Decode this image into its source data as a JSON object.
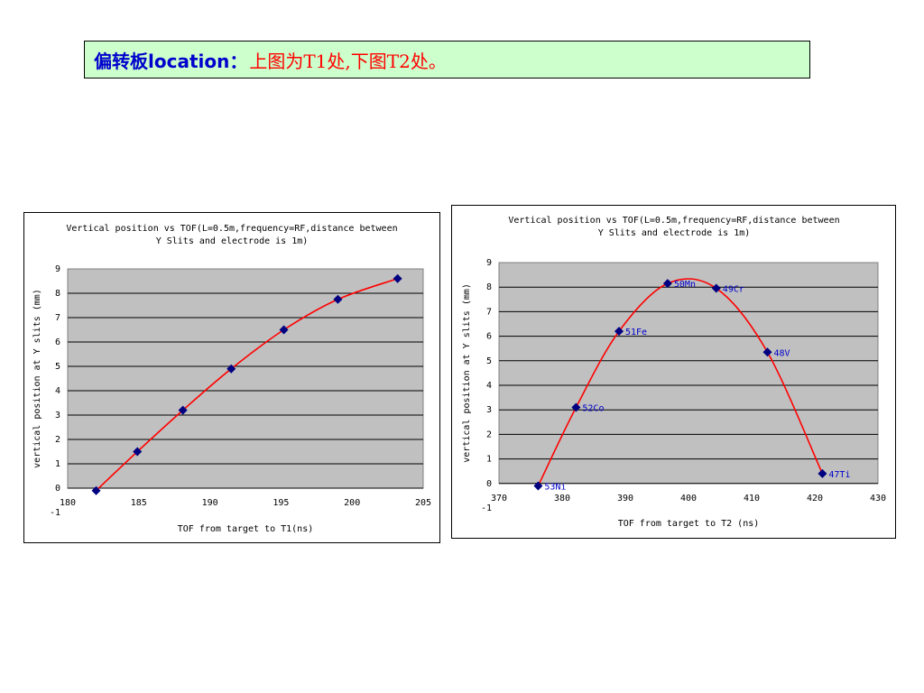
{
  "header": {
    "prefix": "偏转板location：",
    "text": "上图为T1处,下图T2处。",
    "colors": {
      "prefix": "#0000cc",
      "text": "#ff0000",
      "background": "#ccffcc"
    }
  },
  "chart_data": [
    {
      "type": "scatter",
      "title_lines": [
        "Vertical position vs TOF(L=0.5m,frequency=RF,distance between",
        "Y Slits and electrode is 1m)"
      ],
      "xlabel": "TOF from target to T1(ns)",
      "ylabel": "vertical position at Y slits (mm)",
      "xlim": [
        180,
        205
      ],
      "ylim": [
        -1,
        9
      ],
      "xticks": [
        180,
        185,
        190,
        195,
        200,
        205
      ],
      "yticks": [
        -1,
        0,
        1,
        2,
        3,
        4,
        5,
        6,
        7,
        8,
        9
      ],
      "grid": true,
      "plot_background": "#c0c0c0",
      "marker_color": "#000080",
      "line_color": "#ff0000",
      "points": [
        {
          "x": 182.0,
          "y": -0.1
        },
        {
          "x": 184.9,
          "y": 1.5
        },
        {
          "x": 188.1,
          "y": 3.2
        },
        {
          "x": 191.5,
          "y": 4.9
        },
        {
          "x": 195.2,
          "y": 6.5
        },
        {
          "x": 199.0,
          "y": 7.75
        },
        {
          "x": 203.2,
          "y": 8.6
        }
      ]
    },
    {
      "type": "scatter",
      "title_lines": [
        "Vertical position vs TOF(L=0.5m,frequency=RF,distance between",
        "Y Slits and electrode is 1m)"
      ],
      "xlabel": "TOF from target to T2 (ns)",
      "ylabel": "vertical position at Y slits (mm)",
      "xlim": [
        370,
        430
      ],
      "ylim": [
        -1,
        9
      ],
      "xticks": [
        370,
        380,
        390,
        400,
        410,
        420,
        430
      ],
      "yticks": [
        -1,
        0,
        1,
        2,
        3,
        4,
        5,
        6,
        7,
        8,
        9
      ],
      "grid": true,
      "plot_background": "#c0c0c0",
      "marker_color": "#000080",
      "line_color": "#ff0000",
      "label_color": "#0000cc",
      "points": [
        {
          "x": 376.2,
          "y": -0.1,
          "label": "53Ni"
        },
        {
          "x": 382.2,
          "y": 3.1,
          "label": "52Co"
        },
        {
          "x": 389.0,
          "y": 6.2,
          "label": "51Fe"
        },
        {
          "x": 396.7,
          "y": 8.15,
          "label": "50Mn"
        },
        {
          "x": 404.4,
          "y": 7.95,
          "label": "49Cr"
        },
        {
          "x": 412.5,
          "y": 5.35,
          "label": "48V"
        },
        {
          "x": 421.2,
          "y": 0.4,
          "label": "47Ti"
        }
      ]
    }
  ]
}
